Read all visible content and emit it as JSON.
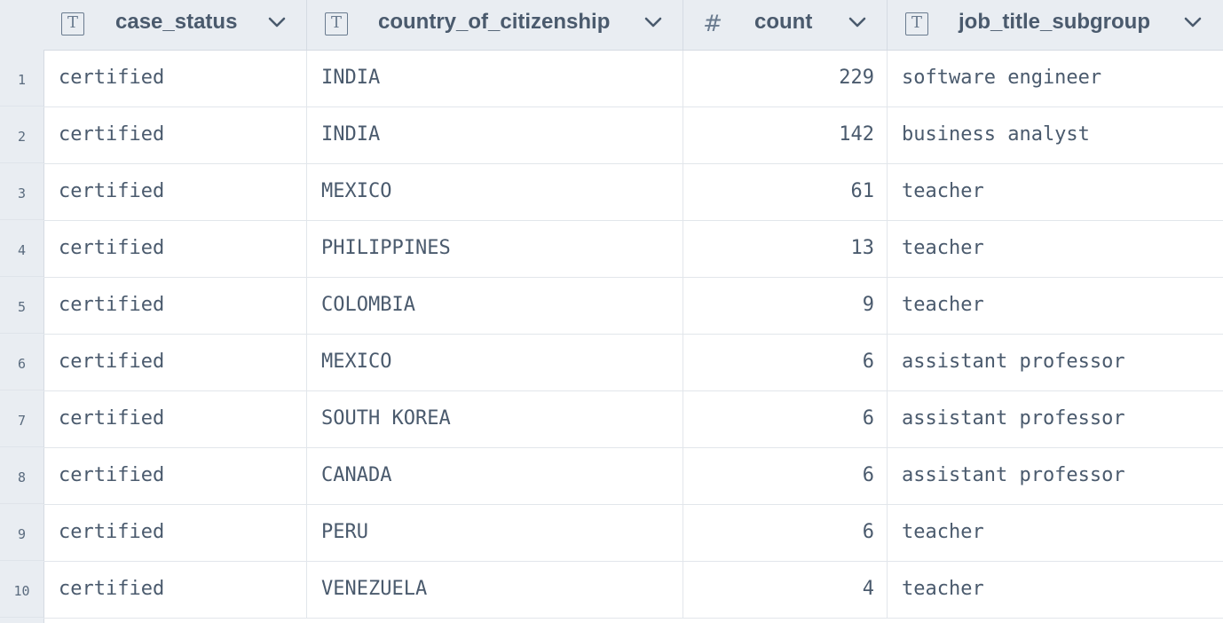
{
  "columns": [
    {
      "name": "case_status",
      "type_icon": "text-type-icon",
      "type_glyph": "T"
    },
    {
      "name": "country_of_citizenship",
      "type_icon": "text-type-icon",
      "type_glyph": "T"
    },
    {
      "name": "count",
      "type_icon": "number-type-icon",
      "type_glyph": "#"
    },
    {
      "name": "job_title_subgroup",
      "type_icon": "text-type-icon",
      "type_glyph": "T"
    }
  ],
  "rows": [
    {
      "num": "1",
      "case_status": "certified",
      "country": "INDIA",
      "count": "229",
      "job": "software engineer"
    },
    {
      "num": "2",
      "case_status": "certified",
      "country": "INDIA",
      "count": "142",
      "job": "business analyst"
    },
    {
      "num": "3",
      "case_status": "certified",
      "country": "MEXICO",
      "count": "61",
      "job": "teacher"
    },
    {
      "num": "4",
      "case_status": "certified",
      "country": "PHILIPPINES",
      "count": "13",
      "job": "teacher"
    },
    {
      "num": "5",
      "case_status": "certified",
      "country": "COLOMBIA",
      "count": "9",
      "job": "teacher"
    },
    {
      "num": "6",
      "case_status": "certified",
      "country": "MEXICO",
      "count": "6",
      "job": "assistant professor"
    },
    {
      "num": "7",
      "case_status": "certified",
      "country": "SOUTH KOREA",
      "count": "6",
      "job": "assistant professor"
    },
    {
      "num": "8",
      "case_status": "certified",
      "country": "CANADA",
      "count": "6",
      "job": "assistant professor"
    },
    {
      "num": "9",
      "case_status": "certified",
      "country": "PERU",
      "count": "6",
      "job": "teacher"
    },
    {
      "num": "10",
      "case_status": "certified",
      "country": "VENEZUELA",
      "count": "4",
      "job": "teacher"
    }
  ],
  "colors": {
    "header_bg": "#e9edf2",
    "text": "#4a5a6d",
    "grid_line": "#e2e6eb"
  }
}
